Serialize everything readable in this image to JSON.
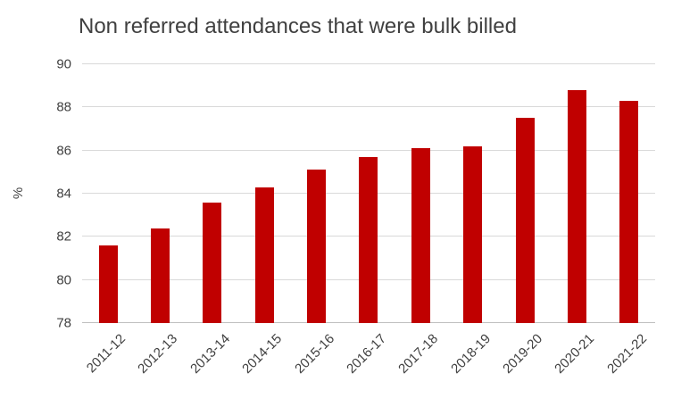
{
  "chart_data": {
    "type": "bar",
    "title": "Non referred attendances that were bulk billed",
    "xlabel": "",
    "ylabel": "%",
    "categories": [
      "2011-12",
      "2012-13",
      "2013-14",
      "2014-15",
      "2015-16",
      "2016-17",
      "2017-18",
      "2018-19",
      "2019-20",
      "2020-21",
      "2021-22"
    ],
    "values": [
      81.6,
      82.4,
      83.6,
      84.3,
      85.1,
      85.7,
      86.1,
      86.2,
      87.5,
      88.8,
      88.3
    ],
    "yticks": [
      78,
      80,
      82,
      84,
      86,
      88,
      90
    ],
    "ylim": [
      78,
      90
    ],
    "grid": true,
    "legend": "none",
    "bar_color": "#c00000",
    "text_color": "#404040",
    "gridline_color": "#d9d9d9"
  }
}
